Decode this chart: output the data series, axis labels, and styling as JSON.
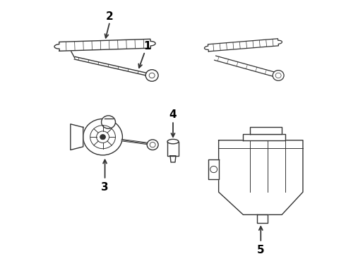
{
  "background_color": "#ffffff",
  "fig_width": 4.9,
  "fig_height": 3.6,
  "dpi": 100,
  "label_fontsize": 11,
  "label_fontweight": "bold",
  "line_color": "#333333",
  "lw": 1.0
}
